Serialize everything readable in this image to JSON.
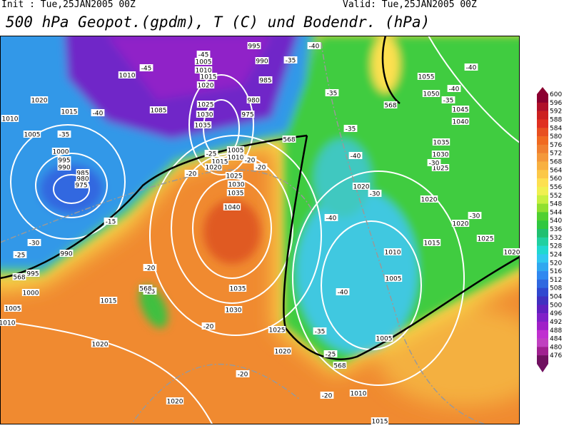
{
  "header": {
    "init": "Init : Tue,25JAN2005 00Z",
    "valid": "Valid: Tue,25JAN2005 00Z",
    "title": "500 hPa Geopot.(gpdm), T (C) und Bodendr. (hPa)"
  },
  "map": {
    "labels": [
      "995",
      "990",
      "985",
      "-45",
      "-45",
      "1005",
      "1010",
      "1015",
      "1020",
      "1010",
      "1020",
      "1015",
      "-40",
      "1085",
      "1025",
      "1030",
      "1035",
      "980",
      "975",
      "1010",
      "1005",
      "-35",
      "1000",
      "995",
      "990",
      "985",
      "980",
      "975",
      "1005",
      "1010",
      "1015",
      "1020",
      "-25",
      "-20",
      "-20",
      "-20",
      "1025",
      "1030",
      "1035",
      "1040",
      "-15",
      "-30",
      "-25",
      "990",
      "995",
      "1000",
      "1005",
      "1010",
      "1015",
      "-20",
      "-25",
      "1035",
      "1030",
      "-20",
      "1025",
      "1020",
      "-20",
      "1020",
      "1020",
      "-20",
      "1010",
      "1015",
      "1005",
      "-25",
      "-35",
      "-40",
      "1005",
      "1010",
      "1015",
      "1020",
      "1025",
      "1020",
      "-30",
      "-40",
      "1020",
      "-30",
      "-40",
      "-35",
      "1035",
      "1030",
      "1025",
      "-30",
      "1020",
      "1040",
      "1045",
      "-35",
      "1050",
      "-40",
      "1055",
      "-40",
      "-40",
      "-35",
      "-35",
      "568",
      "568",
      "568",
      "568",
      "568"
    ]
  },
  "colorbar": {
    "levels": [
      600,
      596,
      592,
      588,
      584,
      580,
      576,
      572,
      568,
      564,
      560,
      556,
      552,
      548,
      544,
      540,
      536,
      532,
      528,
      524,
      520,
      516,
      512,
      508,
      504,
      500,
      496,
      492,
      488,
      484,
      480,
      476
    ],
    "colors": [
      "#8b0030",
      "#b0102a",
      "#cc2020",
      "#e03020",
      "#e85020",
      "#f06a20",
      "#f08030",
      "#f4983a",
      "#f8b040",
      "#fcc848",
      "#fde050",
      "#f0f050",
      "#c8f040",
      "#90e030",
      "#50d030",
      "#30c840",
      "#20c070",
      "#20d0a0",
      "#20d8d0",
      "#30c8f0",
      "#30a8f0",
      "#3088f0",
      "#3068e0",
      "#3048d0",
      "#4030c0",
      "#6020c0",
      "#8020c8",
      "#a020c8",
      "#c030d0",
      "#c040c0",
      "#a02090",
      "#701060"
    ]
  }
}
